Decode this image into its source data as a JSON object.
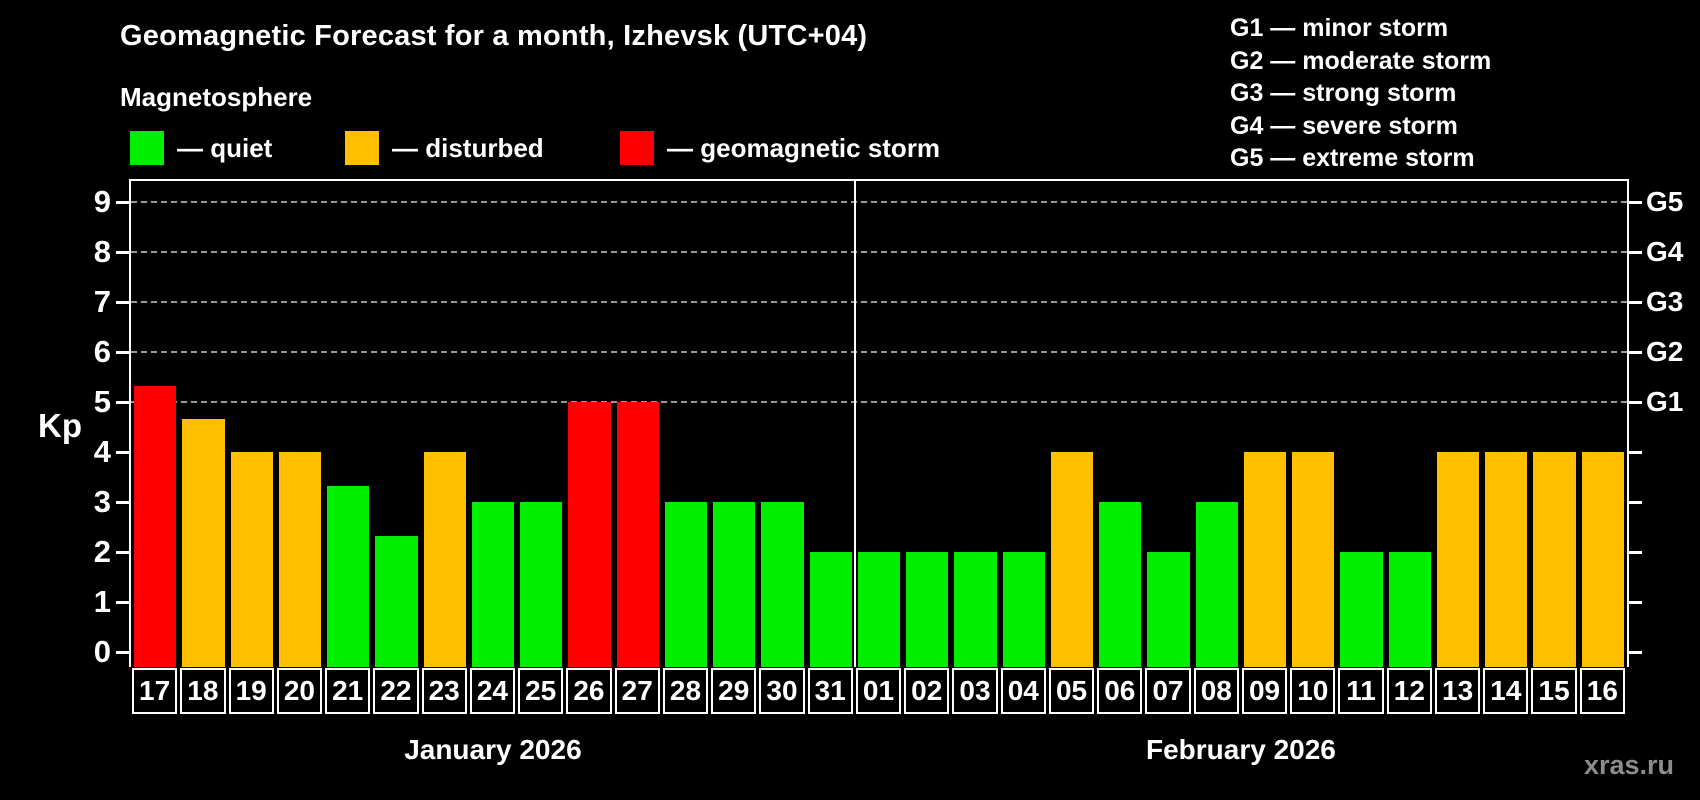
{
  "title": "Geomagnetic Forecast for a month, Izhevsk (UTC+04)",
  "subtitle": "Magnetosphere",
  "kp_axis_label": "Kp",
  "watermark": "xras.ru",
  "legend": {
    "quiet": "— quiet",
    "disturbed": "— disturbed",
    "storm": "— geomagnetic storm"
  },
  "storm_scale": [
    "G1 — minor storm",
    "G2 — moderate storm",
    "G3 — strong storm",
    "G4 — severe storm",
    "G5 — extreme storm"
  ],
  "chart_data": {
    "type": "bar",
    "title": "Geomagnetic Forecast for a month, Izhevsk (UTC+04)",
    "ylabel": "Kp",
    "ylim": [
      -0.3,
      9.42
    ],
    "yticks": [
      0,
      1,
      2,
      3,
      4,
      5,
      6,
      7,
      8,
      9
    ],
    "gridlines": [
      5,
      6,
      7,
      8,
      9
    ],
    "grid_style": "dashed gray horizontal lines at G-storm levels only",
    "legend_position": "top-left",
    "right_axis": [
      {
        "kp": 5,
        "label": "G1"
      },
      {
        "kp": 6,
        "label": "G2"
      },
      {
        "kp": 7,
        "label": "G3"
      },
      {
        "kp": 8,
        "label": "G4"
      },
      {
        "kp": 9,
        "label": "G5"
      }
    ],
    "level_colors": {
      "quiet": "#00EE00",
      "disturbed": "#FFC000",
      "storm": "#FF0000"
    },
    "months": [
      {
        "label": "January 2026",
        "bars": [
          {
            "day": "17",
            "kp": 5.33,
            "level": "storm"
          },
          {
            "day": "18",
            "kp": 4.67,
            "level": "disturbed"
          },
          {
            "day": "19",
            "kp": 4,
            "level": "disturbed"
          },
          {
            "day": "20",
            "kp": 4,
            "level": "disturbed"
          },
          {
            "day": "21",
            "kp": 3.33,
            "level": "quiet"
          },
          {
            "day": "22",
            "kp": 2.33,
            "level": "quiet"
          },
          {
            "day": "23",
            "kp": 4,
            "level": "disturbed"
          },
          {
            "day": "24",
            "kp": 3,
            "level": "quiet"
          },
          {
            "day": "25",
            "kp": 3,
            "level": "quiet"
          },
          {
            "day": "26",
            "kp": 5,
            "level": "storm"
          },
          {
            "day": "27",
            "kp": 5,
            "level": "storm"
          },
          {
            "day": "28",
            "kp": 3,
            "level": "quiet"
          },
          {
            "day": "29",
            "kp": 3,
            "level": "quiet"
          },
          {
            "day": "30",
            "kp": 3,
            "level": "quiet"
          },
          {
            "day": "31",
            "kp": 2,
            "level": "quiet"
          }
        ]
      },
      {
        "label": "February 2026",
        "bars": [
          {
            "day": "01",
            "kp": 2,
            "level": "quiet"
          },
          {
            "day": "02",
            "kp": 2,
            "level": "quiet"
          },
          {
            "day": "03",
            "kp": 2,
            "level": "quiet"
          },
          {
            "day": "04",
            "kp": 2,
            "level": "quiet"
          },
          {
            "day": "05",
            "kp": 4,
            "level": "disturbed"
          },
          {
            "day": "06",
            "kp": 3,
            "level": "quiet"
          },
          {
            "day": "07",
            "kp": 2,
            "level": "quiet"
          },
          {
            "day": "08",
            "kp": 3,
            "level": "quiet"
          },
          {
            "day": "09",
            "kp": 4,
            "level": "disturbed"
          },
          {
            "day": "10",
            "kp": 4,
            "level": "disturbed"
          },
          {
            "day": "11",
            "kp": 2,
            "level": "quiet"
          },
          {
            "day": "12",
            "kp": 2,
            "level": "quiet"
          },
          {
            "day": "13",
            "kp": 4,
            "level": "disturbed"
          },
          {
            "day": "14",
            "kp": 4,
            "level": "disturbed"
          },
          {
            "day": "15",
            "kp": 4,
            "level": "disturbed"
          },
          {
            "day": "16",
            "kp": 4,
            "level": "disturbed"
          }
        ]
      }
    ]
  }
}
